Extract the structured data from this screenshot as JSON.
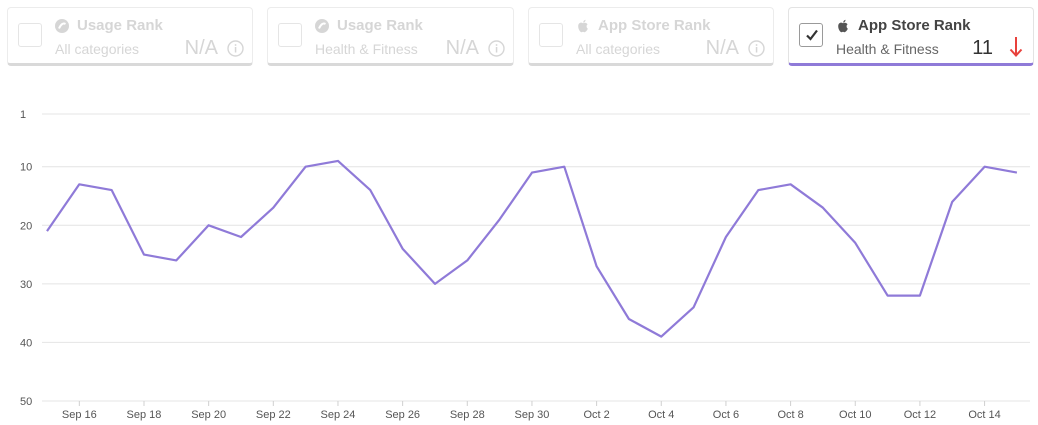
{
  "cards": [
    {
      "title": "Usage Rank",
      "subtitle": "All categories",
      "value": "N/A",
      "source_icon": "similarweb-icon",
      "checked": false
    },
    {
      "title": "Usage Rank",
      "subtitle": "Health & Fitness",
      "value": "N/A",
      "source_icon": "similarweb-icon",
      "checked": false
    },
    {
      "title": "App Store Rank",
      "subtitle": "All categories",
      "value": "N/A",
      "source_icon": "apple-icon",
      "checked": false
    },
    {
      "title": "App Store Rank",
      "subtitle": "Health & Fitness",
      "value": "11",
      "source_icon": "apple-icon",
      "checked": true,
      "trend": "down"
    }
  ],
  "colors": {
    "line": "#8f7ad8",
    "trend_down": "#e8413c",
    "grid": "#e4e4e4",
    "disabled_text": "#d6d6d6"
  },
  "chart_data": {
    "type": "line",
    "title": "",
    "xlabel": "",
    "ylabel": "",
    "y_inverted": true,
    "ylim": [
      1,
      50
    ],
    "yticks": [
      1,
      10,
      20,
      30,
      40,
      50
    ],
    "x_tick_labels": [
      "Sep 16",
      "Sep 18",
      "Sep 20",
      "Sep 22",
      "Sep 24",
      "Sep 26",
      "Sep 28",
      "Sep 30",
      "Oct 2",
      "Oct 4",
      "Oct 6",
      "Oct 8",
      "Oct 10",
      "Oct 12",
      "Oct 14"
    ],
    "grid": true,
    "series": [
      {
        "x": [
          "Sep 15",
          "Sep 16",
          "Sep 17",
          "Sep 18",
          "Sep 19",
          "Sep 20",
          "Sep 21",
          "Sep 22",
          "Sep 23",
          "Sep 24",
          "Sep 25",
          "Sep 26",
          "Sep 27",
          "Sep 28",
          "Sep 29",
          "Sep 30",
          "Oct 1",
          "Oct 2",
          "Oct 3",
          "Oct 4",
          "Oct 5",
          "Oct 6",
          "Oct 7",
          "Oct 8",
          "Oct 9",
          "Oct 10",
          "Oct 11",
          "Oct 12",
          "Oct 13",
          "Oct 14",
          "Oct 15"
        ],
        "values": [
          21,
          13,
          14,
          25,
          26,
          20,
          22,
          17,
          10,
          9,
          14,
          24,
          30,
          26,
          19,
          11,
          10,
          27,
          36,
          39,
          34,
          22,
          14,
          13,
          17,
          23,
          32,
          32,
          16,
          10,
          11
        ]
      }
    ]
  }
}
